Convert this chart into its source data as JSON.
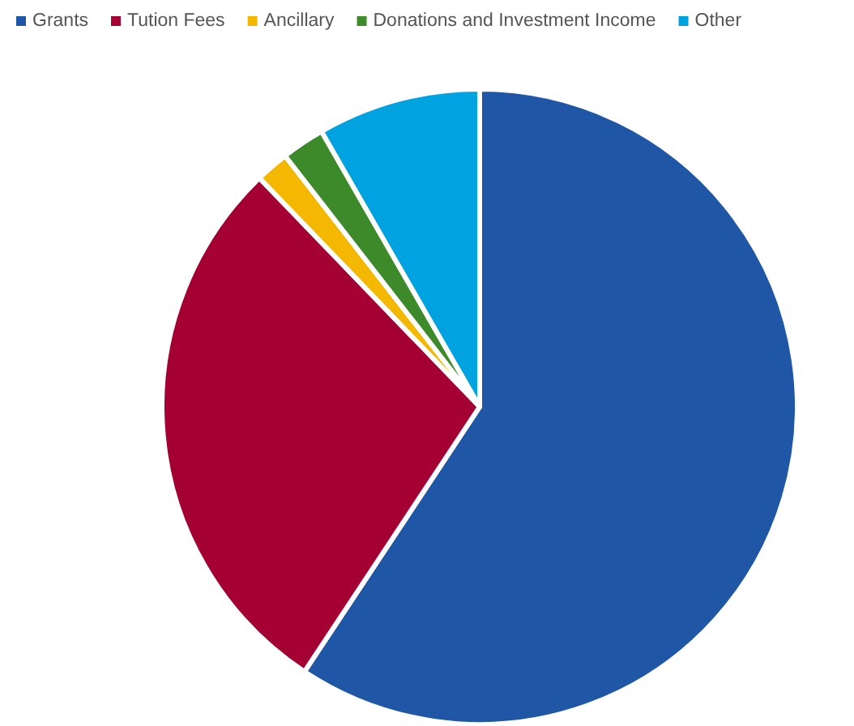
{
  "chart_data": {
    "type": "pie",
    "legend": "top",
    "categories": [
      "Grants",
      "Tution Fees",
      "Ancillary",
      "Donations and Investment Income",
      "Other"
    ],
    "values": [
      59.3,
      28.5,
      1.7,
      2.2,
      8.3
    ],
    "colors": [
      "#1f56a5",
      "#a50034",
      "#f5b800",
      "#3d8a2a",
      "#00a3e0"
    ]
  }
}
